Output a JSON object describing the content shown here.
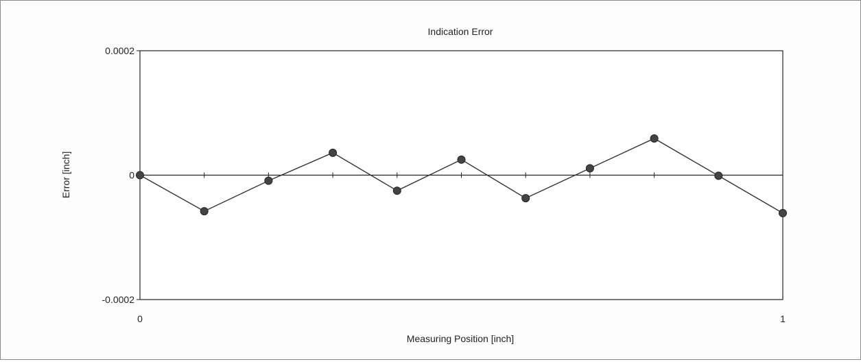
{
  "chart_data": {
    "type": "line",
    "title": "Indication Error",
    "xlabel": "Measuring Position [inch]",
    "ylabel": "Error [inch]",
    "xlim": [
      0,
      1
    ],
    "ylim": [
      -0.0002,
      0.0002
    ],
    "x_ticks": [
      0,
      0.1,
      0.2,
      0.3,
      0.4,
      0.5,
      0.6,
      0.7,
      0.8,
      0.9,
      1
    ],
    "x_tick_labels": [
      {
        "value": 0,
        "label": "0"
      },
      {
        "value": 1,
        "label": "1"
      }
    ],
    "y_tick_labels": [
      {
        "value": 0.0002,
        "label": "0.0002"
      },
      {
        "value": 0,
        "label": "0"
      },
      {
        "value": -0.0002,
        "label": "-0.0002"
      }
    ],
    "zero_line": true,
    "grid": false,
    "legend": "none",
    "series": [
      {
        "color": "#333333",
        "marker": "circle",
        "x": [
          0,
          0.1,
          0.2,
          0.3,
          0.4,
          0.5,
          0.6,
          0.7,
          0.8,
          0.9,
          1
        ],
        "y": [
          0,
          -5.8e-05,
          -9e-06,
          3.6e-05,
          -2.5e-05,
          2.5e-05,
          -3.7e-05,
          1.1e-05,
          5.9e-05,
          -1e-06,
          -6.1e-05
        ]
      }
    ]
  }
}
